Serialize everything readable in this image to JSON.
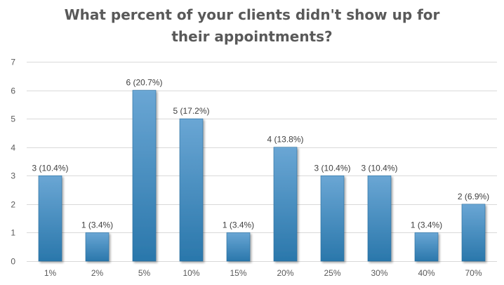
{
  "chart_data": {
    "type": "bar",
    "title_lines": [
      "What percent of your clients didn't show up for",
      "their appointments?"
    ],
    "categories": [
      "1%",
      "2%",
      "5%",
      "10%",
      "15%",
      "20%",
      "25%",
      "30%",
      "40%",
      "70%"
    ],
    "values": [
      3,
      1,
      6,
      5,
      1,
      4,
      3,
      3,
      1,
      2
    ],
    "data_labels": [
      "3 (10.4%)",
      "1 (3.4%)",
      "6 (20.7%)",
      "5 (17.2%)",
      "1 (3.4%)",
      "4 (13.8%)",
      "3 (10.4%)",
      "3 (10.4%)",
      "1 (3.4%)",
      "2 (6.9%)"
    ],
    "ylim": [
      0,
      7
    ],
    "yticks": [
      "0",
      "1",
      "2",
      "3",
      "4",
      "5",
      "6",
      "7"
    ],
    "grid": true,
    "legend": "none",
    "colors": {
      "bar_top": "#6aa6d4",
      "bar_bottom": "#2a77ab",
      "bar_edge": "#2a6f9f",
      "grid": "#d9d9d9",
      "text": "#595959"
    }
  }
}
